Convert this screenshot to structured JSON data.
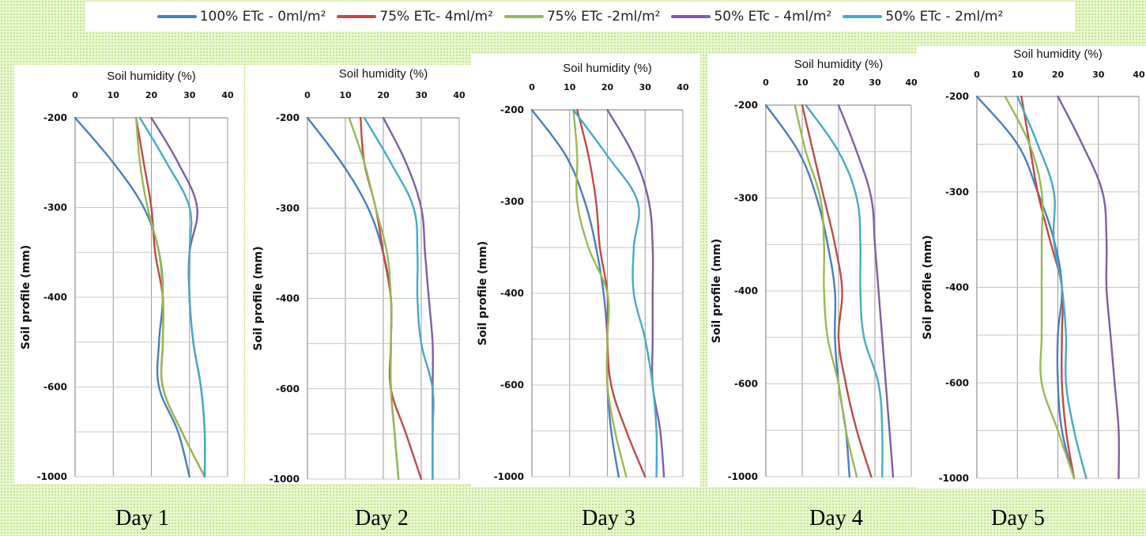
{
  "legend": [
    {
      "name": "100% ETc - 0ml/m²",
      "color": "#4a7ebb"
    },
    {
      "name": "75% ETc- 4ml/m²",
      "color": "#be4b48"
    },
    {
      "name": "75% ETc -2ml/m²",
      "color": "#98b954"
    },
    {
      "name": "50% ETc - 4ml/m²",
      "color": "#7d60a0"
    },
    {
      "name": "50% ETc - 2ml/m²",
      "color": "#46aac5"
    }
  ],
  "chart_data": [
    {
      "type": "line",
      "title": "",
      "day_label": "Day 1",
      "xlabel": "Soil humidity (%)",
      "ylabel": "Soil profile (mm)",
      "xlim": [
        0,
        40
      ],
      "xticks": [
        "0",
        "10",
        "20",
        "30",
        "40"
      ],
      "yticks": [
        "-200",
        "-300",
        "-400",
        "-600",
        "-1000"
      ],
      "y": [
        -200,
        -250,
        -300,
        -350,
        -400,
        -500,
        -600,
        -800,
        -1000
      ],
      "series": [
        {
          "name": "100% ETc - 0ml/m²",
          "values": [
            0,
            10,
            18,
            22,
            23,
            22,
            22,
            27,
            30
          ]
        },
        {
          "name": "75% ETc- 4ml/m²",
          "values": [
            16,
            18,
            20,
            21,
            23,
            23,
            23,
            28,
            34
          ]
        },
        {
          "name": "75% ETc -2ml/m²",
          "values": [
            16,
            17,
            19,
            22,
            23,
            23,
            23,
            28,
            34
          ]
        },
        {
          "name": "50% ETc - 4ml/m²",
          "values": [
            20,
            27,
            32,
            30,
            30,
            31,
            33,
            34,
            34
          ]
        },
        {
          "name": "50% ETc - 2ml/m²",
          "values": [
            17,
            24,
            30,
            30,
            30,
            31,
            33,
            34,
            34
          ]
        }
      ]
    },
    {
      "type": "line",
      "title": "",
      "day_label": "Day 2",
      "xlabel": "Soil humidity (%)",
      "ylabel": "Soil profile (mm)",
      "xlim": [
        0,
        40
      ],
      "xticks": [
        "0",
        "10",
        "20",
        "30",
        "40"
      ],
      "yticks": [
        "-200",
        "-300",
        "-400",
        "-600",
        "-1000"
      ],
      "y": [
        -200,
        -250,
        -300,
        -350,
        -400,
        -500,
        -600,
        -800,
        -1000
      ],
      "series": [
        {
          "name": "100% ETc - 0ml/m²",
          "values": [
            0,
            9,
            16,
            20,
            22,
            22,
            22,
            23,
            24
          ]
        },
        {
          "name": "75% ETc- 4ml/m²",
          "values": [
            14,
            15,
            18,
            20,
            22,
            22,
            22,
            26,
            30
          ]
        },
        {
          "name": "75% ETc -2ml/m²",
          "values": [
            11,
            15,
            18,
            21,
            22,
            22,
            22,
            23,
            24
          ]
        },
        {
          "name": "50% ETc - 4ml/m²",
          "values": [
            20,
            26,
            30,
            31,
            32,
            33,
            33,
            33,
            33
          ]
        },
        {
          "name": "50% ETc - 2ml/m²",
          "values": [
            15,
            22,
            28,
            29,
            29,
            30,
            33,
            33,
            33
          ]
        }
      ]
    },
    {
      "type": "line",
      "title": "",
      "day_label": "Day 3",
      "xlabel": "Soil humidity (%)",
      "ylabel": "Soil profile (mm)",
      "xlim": [
        0,
        40
      ],
      "xticks": [
        "0",
        "10",
        "20",
        "30",
        "40"
      ],
      "yticks": [
        "-200",
        "-300",
        "-400",
        "-600",
        "-1000"
      ],
      "y": [
        -200,
        -250,
        -300,
        -350,
        -400,
        -500,
        -600,
        -800,
        -1000
      ],
      "series": [
        {
          "name": "100% ETc - 0ml/m²",
          "values": [
            0,
            9,
            14,
            17,
            19,
            20,
            20,
            21,
            23
          ]
        },
        {
          "name": "75% ETc- 4ml/m²",
          "values": [
            12,
            15,
            17,
            18,
            20,
            20,
            21,
            25,
            30
          ]
        },
        {
          "name": "75% ETc -2ml/m²",
          "values": [
            11,
            12,
            12,
            15,
            20,
            20,
            20,
            22,
            25
          ]
        },
        {
          "name": "50% ETc - 4ml/m²",
          "values": [
            20,
            27,
            31,
            32,
            32,
            32,
            32,
            34,
            35
          ]
        },
        {
          "name": "50% ETc - 2ml/m²",
          "values": [
            11,
            20,
            28,
            27,
            27,
            30,
            32,
            33,
            33
          ]
        }
      ]
    },
    {
      "type": "line",
      "title": "",
      "day_label": "Day 4",
      "xlabel": "Soil humidity (%)",
      "ylabel": "Soil profile (mm)",
      "xlim": [
        0,
        40
      ],
      "xticks": [
        "0",
        "10",
        "20",
        "30",
        "40"
      ],
      "yticks": [
        "-200",
        "-300",
        "-400",
        "-600",
        "-1000"
      ],
      "y": [
        -200,
        -250,
        -300,
        -350,
        -400,
        -500,
        -600,
        -800,
        -1000
      ],
      "series": [
        {
          "name": "100% ETc - 0ml/m²",
          "values": [
            0,
            9,
            14,
            17,
            19,
            19,
            20,
            22,
            23
          ]
        },
        {
          "name": "75% ETc- 4ml/m²",
          "values": [
            10,
            13,
            16,
            19,
            21,
            20,
            22,
            25,
            29
          ]
        },
        {
          "name": "75% ETc -2ml/m²",
          "values": [
            8,
            11,
            15,
            16,
            16,
            17,
            20,
            22,
            25
          ]
        },
        {
          "name": "50% ETc - 4ml/m²",
          "values": [
            20,
            25,
            29,
            30,
            31,
            32,
            33,
            34,
            35
          ]
        },
        {
          "name": "50% ETc - 2ml/m²",
          "values": [
            11,
            20,
            25,
            26,
            26,
            27,
            31,
            32,
            32
          ]
        }
      ]
    },
    {
      "type": "line",
      "title": "",
      "day_label": "Day 5",
      "xlabel": "Soil humidity (%)",
      "ylabel": "Soil profile (mm)",
      "xlim": [
        0,
        40
      ],
      "xticks": [
        "0",
        "10",
        "20",
        "30",
        "40"
      ],
      "yticks": [
        "-200",
        "-300",
        "-400",
        "-600",
        "-1000"
      ],
      "y": [
        -200,
        -250,
        -300,
        -350,
        -400,
        -500,
        -600,
        -800,
        -1000
      ],
      "series": [
        {
          "name": "100% ETc - 0ml/m²",
          "values": [
            0,
            10,
            15,
            19,
            21,
            20,
            20,
            21,
            24
          ]
        },
        {
          "name": "75% ETc- 4ml/m²",
          "values": [
            11,
            13,
            15,
            18,
            21,
            21,
            21,
            22,
            24
          ]
        },
        {
          "name": "75% ETc -2ml/m²",
          "values": [
            7,
            13,
            16,
            16,
            16,
            16,
            16,
            20,
            24
          ]
        },
        {
          "name": "50% ETc - 4ml/m²",
          "values": [
            20,
            26,
            31,
            32,
            32,
            33,
            34,
            35,
            35
          ]
        },
        {
          "name": "50% ETc - 2ml/m²",
          "values": [
            10,
            15,
            19,
            19,
            21,
            22,
            22,
            24,
            27
          ]
        }
      ]
    }
  ]
}
